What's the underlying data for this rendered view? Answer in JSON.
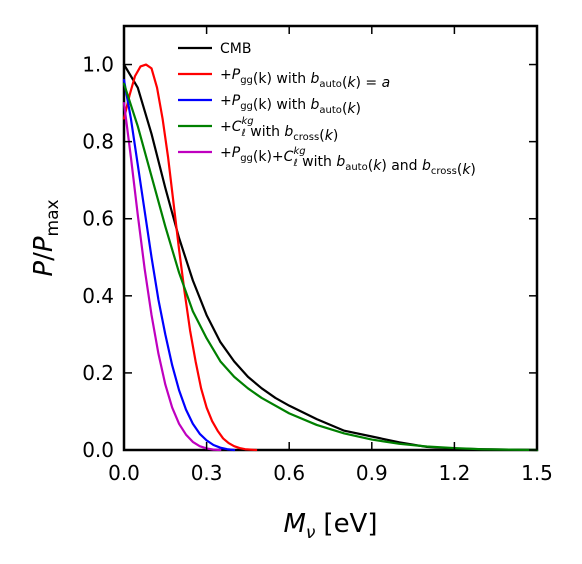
{
  "chart_data": {
    "type": "line",
    "xlabel": {
      "main": "M",
      "sub": "ν",
      "unit": "[eV]"
    },
    "ylabel": {
      "main": "P",
      "slash": "/",
      "main2": "P",
      "sub": "max"
    },
    "xlim": [
      0.0,
      1.5
    ],
    "ylim": [
      0.0,
      1.1
    ],
    "xticks": [
      0.0,
      0.3,
      0.6,
      0.9,
      1.2,
      1.5
    ],
    "xtick_labels": [
      "0.0",
      "0.3",
      "0.6",
      "0.9",
      "1.2",
      "1.5"
    ],
    "yticks": [
      0.0,
      0.2,
      0.4,
      0.6,
      0.8,
      1.0
    ],
    "ytick_labels": [
      "0.0",
      "0.2",
      "0.4",
      "0.6",
      "0.8",
      "1.0"
    ],
    "grid": false,
    "legend_position": "top-right",
    "series": [
      {
        "name": "CMB",
        "color": "#000000",
        "x": [
          0.0,
          0.05,
          0.1,
          0.15,
          0.2,
          0.25,
          0.3,
          0.35,
          0.4,
          0.45,
          0.5,
          0.55,
          0.6,
          0.7,
          0.8,
          0.9,
          1.0,
          1.1,
          1.2,
          1.3,
          1.4,
          1.5
        ],
        "y": [
          1.0,
          0.94,
          0.82,
          0.68,
          0.55,
          0.44,
          0.35,
          0.28,
          0.23,
          0.19,
          0.16,
          0.135,
          0.115,
          0.08,
          0.05,
          0.035,
          0.02,
          0.008,
          0.004,
          0.002,
          0.001,
          0.0
        ]
      },
      {
        "name": "+P_gg(k) with b_auto(k) = a",
        "color": "#ff0000",
        "x": [
          0.0,
          0.02,
          0.04,
          0.06,
          0.08,
          0.1,
          0.12,
          0.14,
          0.16,
          0.18,
          0.2,
          0.22,
          0.24,
          0.26,
          0.28,
          0.3,
          0.32,
          0.34,
          0.36,
          0.38,
          0.4,
          0.42,
          0.44,
          0.46,
          0.48
        ],
        "y": [
          0.86,
          0.92,
          0.97,
          0.995,
          1.0,
          0.99,
          0.94,
          0.86,
          0.76,
          0.64,
          0.52,
          0.41,
          0.31,
          0.23,
          0.16,
          0.11,
          0.075,
          0.05,
          0.03,
          0.018,
          0.01,
          0.005,
          0.002,
          0.001,
          0.0
        ]
      },
      {
        "name": "+P_gg(k) with b_auto(k)",
        "color": "#0000ff",
        "x": [
          0.0,
          0.025,
          0.05,
          0.075,
          0.1,
          0.125,
          0.15,
          0.175,
          0.2,
          0.225,
          0.25,
          0.275,
          0.3,
          0.325,
          0.35,
          0.375,
          0.4
        ],
        "y": [
          0.96,
          0.86,
          0.74,
          0.62,
          0.5,
          0.39,
          0.3,
          0.22,
          0.155,
          0.105,
          0.068,
          0.042,
          0.025,
          0.013,
          0.006,
          0.002,
          0.0
        ]
      },
      {
        "name": "+C_ℓ^kg with b_cross(k)",
        "color": "#008000",
        "x": [
          0.0,
          0.05,
          0.1,
          0.15,
          0.2,
          0.25,
          0.3,
          0.35,
          0.4,
          0.45,
          0.5,
          0.6,
          0.7,
          0.8,
          0.9,
          1.0,
          1.1,
          1.2,
          1.3,
          1.4,
          1.5
        ],
        "y": [
          0.95,
          0.84,
          0.71,
          0.58,
          0.46,
          0.36,
          0.29,
          0.23,
          0.19,
          0.16,
          0.135,
          0.095,
          0.065,
          0.043,
          0.027,
          0.016,
          0.009,
          0.005,
          0.002,
          0.001,
          0.0
        ]
      },
      {
        "name": "+P_gg(k)+C_ℓ^kg with b_auto(k) and b_cross(k)",
        "color": "#bf00bf",
        "x": [
          0.0,
          0.025,
          0.05,
          0.075,
          0.1,
          0.125,
          0.15,
          0.175,
          0.2,
          0.225,
          0.25,
          0.275,
          0.3,
          0.325,
          0.35
        ],
        "y": [
          0.9,
          0.76,
          0.61,
          0.47,
          0.35,
          0.25,
          0.17,
          0.11,
          0.068,
          0.04,
          0.021,
          0.01,
          0.004,
          0.001,
          0.0
        ]
      }
    ],
    "legend": [
      {
        "parts": [
          [
            "t",
            "CMB"
          ]
        ]
      },
      {
        "parts": [
          [
            "t",
            "+"
          ],
          [
            "i",
            "P"
          ],
          [
            "s",
            "gg"
          ],
          [
            "t",
            "(k) with "
          ],
          [
            "i",
            "b"
          ],
          [
            "s",
            "auto"
          ],
          [
            "t",
            "("
          ],
          [
            "i",
            "k"
          ],
          [
            "t",
            ") = "
          ],
          [
            "i",
            "a"
          ]
        ]
      },
      {
        "parts": [
          [
            "t",
            "+"
          ],
          [
            "i",
            "P"
          ],
          [
            "s",
            "gg"
          ],
          [
            "t",
            "(k) with "
          ],
          [
            "i",
            "b"
          ],
          [
            "s",
            "auto"
          ],
          [
            "t",
            "("
          ],
          [
            "i",
            "k"
          ],
          [
            "t",
            ")"
          ]
        ]
      },
      {
        "parts": [
          [
            "t",
            "+"
          ],
          [
            "i",
            "C"
          ],
          [
            "ss",
            "kg",
            "ℓ"
          ],
          [
            "t",
            " with "
          ],
          [
            "i",
            "b"
          ],
          [
            "s",
            "cross"
          ],
          [
            "t",
            "("
          ],
          [
            "i",
            "k"
          ],
          [
            "t",
            ")"
          ]
        ]
      },
      {
        "parts": [
          [
            "t",
            "+"
          ],
          [
            "i",
            "P"
          ],
          [
            "s",
            "gg"
          ],
          [
            "t",
            "(k)+"
          ],
          [
            "i",
            "C"
          ],
          [
            "ss",
            "kg",
            "ℓ"
          ],
          [
            "t",
            " with "
          ],
          [
            "i",
            "b"
          ],
          [
            "s",
            "auto"
          ],
          [
            "t",
            "("
          ],
          [
            "i",
            "k"
          ],
          [
            "t",
            ") and "
          ],
          [
            "i",
            "b"
          ],
          [
            "s",
            "cross"
          ],
          [
            "t",
            "("
          ],
          [
            "i",
            "k"
          ],
          [
            "t",
            ")"
          ]
        ]
      }
    ]
  }
}
